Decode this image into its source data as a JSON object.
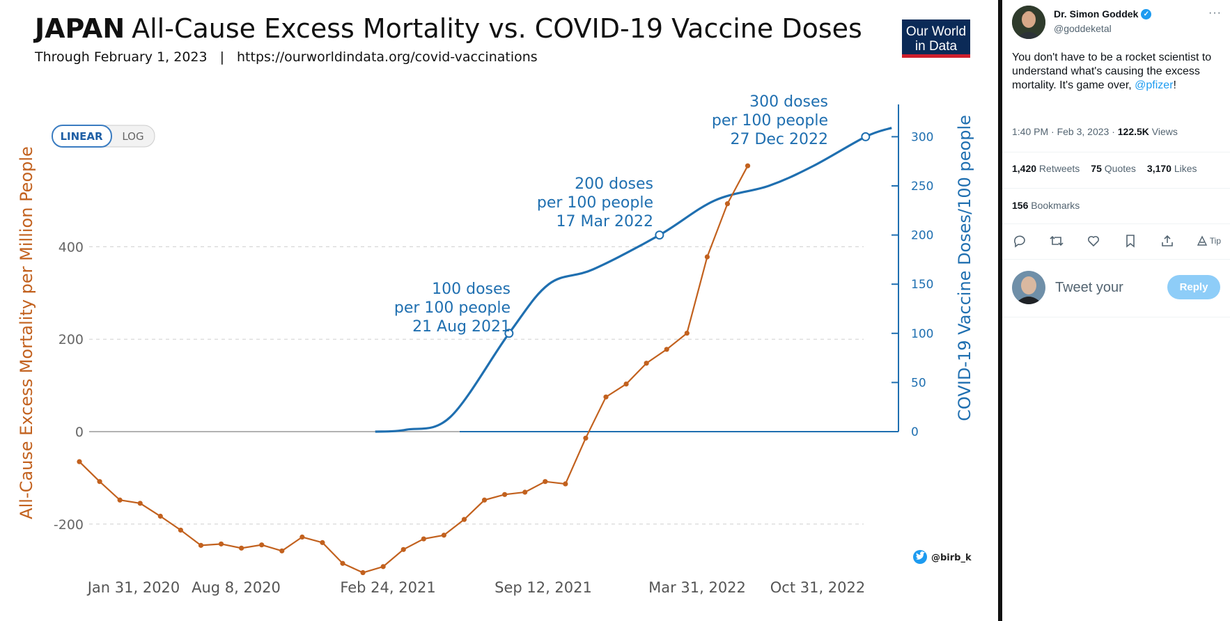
{
  "chart": {
    "title_bold": "JAPAN",
    "title_rest": "All-Cause Excess Mortality vs. COVID-19 Vaccine Doses",
    "subtitle_date": "Through February 1, 2023",
    "subtitle_sep": "|",
    "subtitle_url": "https://ourworldindata.org/covid-vaccinations",
    "logo_line1": "Our World",
    "logo_line2": "in Data",
    "toggle_linear": "LINEAR",
    "toggle_log": "LOG",
    "credit": "@birb_k",
    "annotations": [
      {
        "line1": "100 doses",
        "line2": "per 100 people",
        "line3": "21 Aug 2021"
      },
      {
        "line1": "200 doses",
        "line2": "per 100 people",
        "line3": "17 Mar 2022"
      },
      {
        "line1": "300 doses",
        "line2": "per 100 people",
        "line3": "27 Dec 2022"
      }
    ],
    "colors": {
      "mortality": "#c2611e",
      "vaccine": "#1f6fb0",
      "logo_bg": "#0b2a57",
      "logo_bar": "#ce1e2c"
    }
  },
  "chart_data": {
    "type": "line",
    "title": "JAPAN All-Cause Excess Mortality vs. COVID-19 Vaccine Doses",
    "x_tick_labels": [
      "Jan 31, 2020",
      "Aug 8, 2020",
      "Feb 24, 2021",
      "Sep 12, 2021",
      "Mar 31, 2022",
      "Oct 31, 2022"
    ],
    "y_left_label": "All-Cause Excess Mortality per Million People",
    "y_left_ticks": [
      "400",
      "200",
      "0",
      "-200"
    ],
    "y_left_lim": [
      -320,
      580
    ],
    "y_right_label": "COVID-19 Vaccine Doses/100 people",
    "y_right_ticks": [
      "300",
      "250",
      "200",
      "150",
      "100",
      "50",
      "0"
    ],
    "y_right_lim": [
      0,
      310
    ],
    "grid": true,
    "series": [
      {
        "axis": "left",
        "x": [
          "2020-01-05",
          "2020-02-02",
          "2020-03-01",
          "2020-03-29",
          "2020-04-26",
          "2020-05-24",
          "2020-06-21",
          "2020-07-19",
          "2020-08-16",
          "2020-09-13",
          "2020-10-11",
          "2020-11-08",
          "2020-12-06",
          "2021-01-03",
          "2021-01-31",
          "2021-02-28",
          "2021-03-28",
          "2021-04-25",
          "2021-05-23",
          "2021-06-20",
          "2021-07-18",
          "2021-08-15",
          "2021-09-12",
          "2021-10-10",
          "2021-11-07",
          "2021-12-05",
          "2022-01-02",
          "2022-01-30",
          "2022-02-27",
          "2022-03-27",
          "2022-04-24",
          "2022-05-22",
          "2022-06-19",
          "2022-07-17",
          "2022-08-14",
          "2022-09-11",
          "2022-10-09",
          "2022-11-06",
          "2022-12-04"
        ],
        "values": [
          -65,
          -108,
          -148,
          -155,
          -183,
          -213,
          -246,
          -243,
          -252,
          -245,
          -258,
          -228,
          -240,
          -285,
          -305,
          -292,
          -255,
          -232,
          -224,
          -190,
          -148,
          -136,
          -131,
          -108,
          -113,
          -14,
          75,
          103,
          148,
          178,
          213,
          378,
          493,
          575,
          null,
          null,
          null,
          null,
          null
        ]
      },
      {
        "axis": "right",
        "x": [
          "2021-02-17",
          "2021-04-01",
          "2021-06-01",
          "2021-08-21",
          "2021-10-15",
          "2021-12-15",
          "2022-03-17",
          "2022-06-01",
          "2022-08-15",
          "2022-10-15",
          "2022-12-27",
          "2023-02-01"
        ],
        "values": [
          0,
          2,
          15,
          100,
          150,
          165,
          200,
          235,
          250,
          270,
          300,
          309
        ]
      }
    ]
  },
  "tweet": {
    "name": "Dr. Simon Goddek",
    "verified_icon": "✓",
    "handle": "@goddeketal",
    "more": "···",
    "text_before": "You don't have to be a rocket scientist to understand what's causing the excess mortality. It's game over, ",
    "mention": "@pfizer",
    "text_after": "!",
    "time": "1:40 PM · Feb 3, 2023 · ",
    "views_count": "122.5K",
    "views_label": " Views",
    "retweets_count": "1,420",
    "retweets_label": " Retweets",
    "quotes_count": "75",
    "quotes_label": " Quotes",
    "likes_count": "3,170",
    "likes_label": " Likes",
    "bookmarks_count": "156",
    "bookmarks_label": " Bookmarks",
    "tip_label": "Tip",
    "reply_placeholder": "Tweet your",
    "reply_button": "Reply",
    "icons": [
      "reply-icon",
      "retweet-icon",
      "like-icon",
      "bookmark-icon",
      "share-icon",
      "tip-icon"
    ]
  }
}
